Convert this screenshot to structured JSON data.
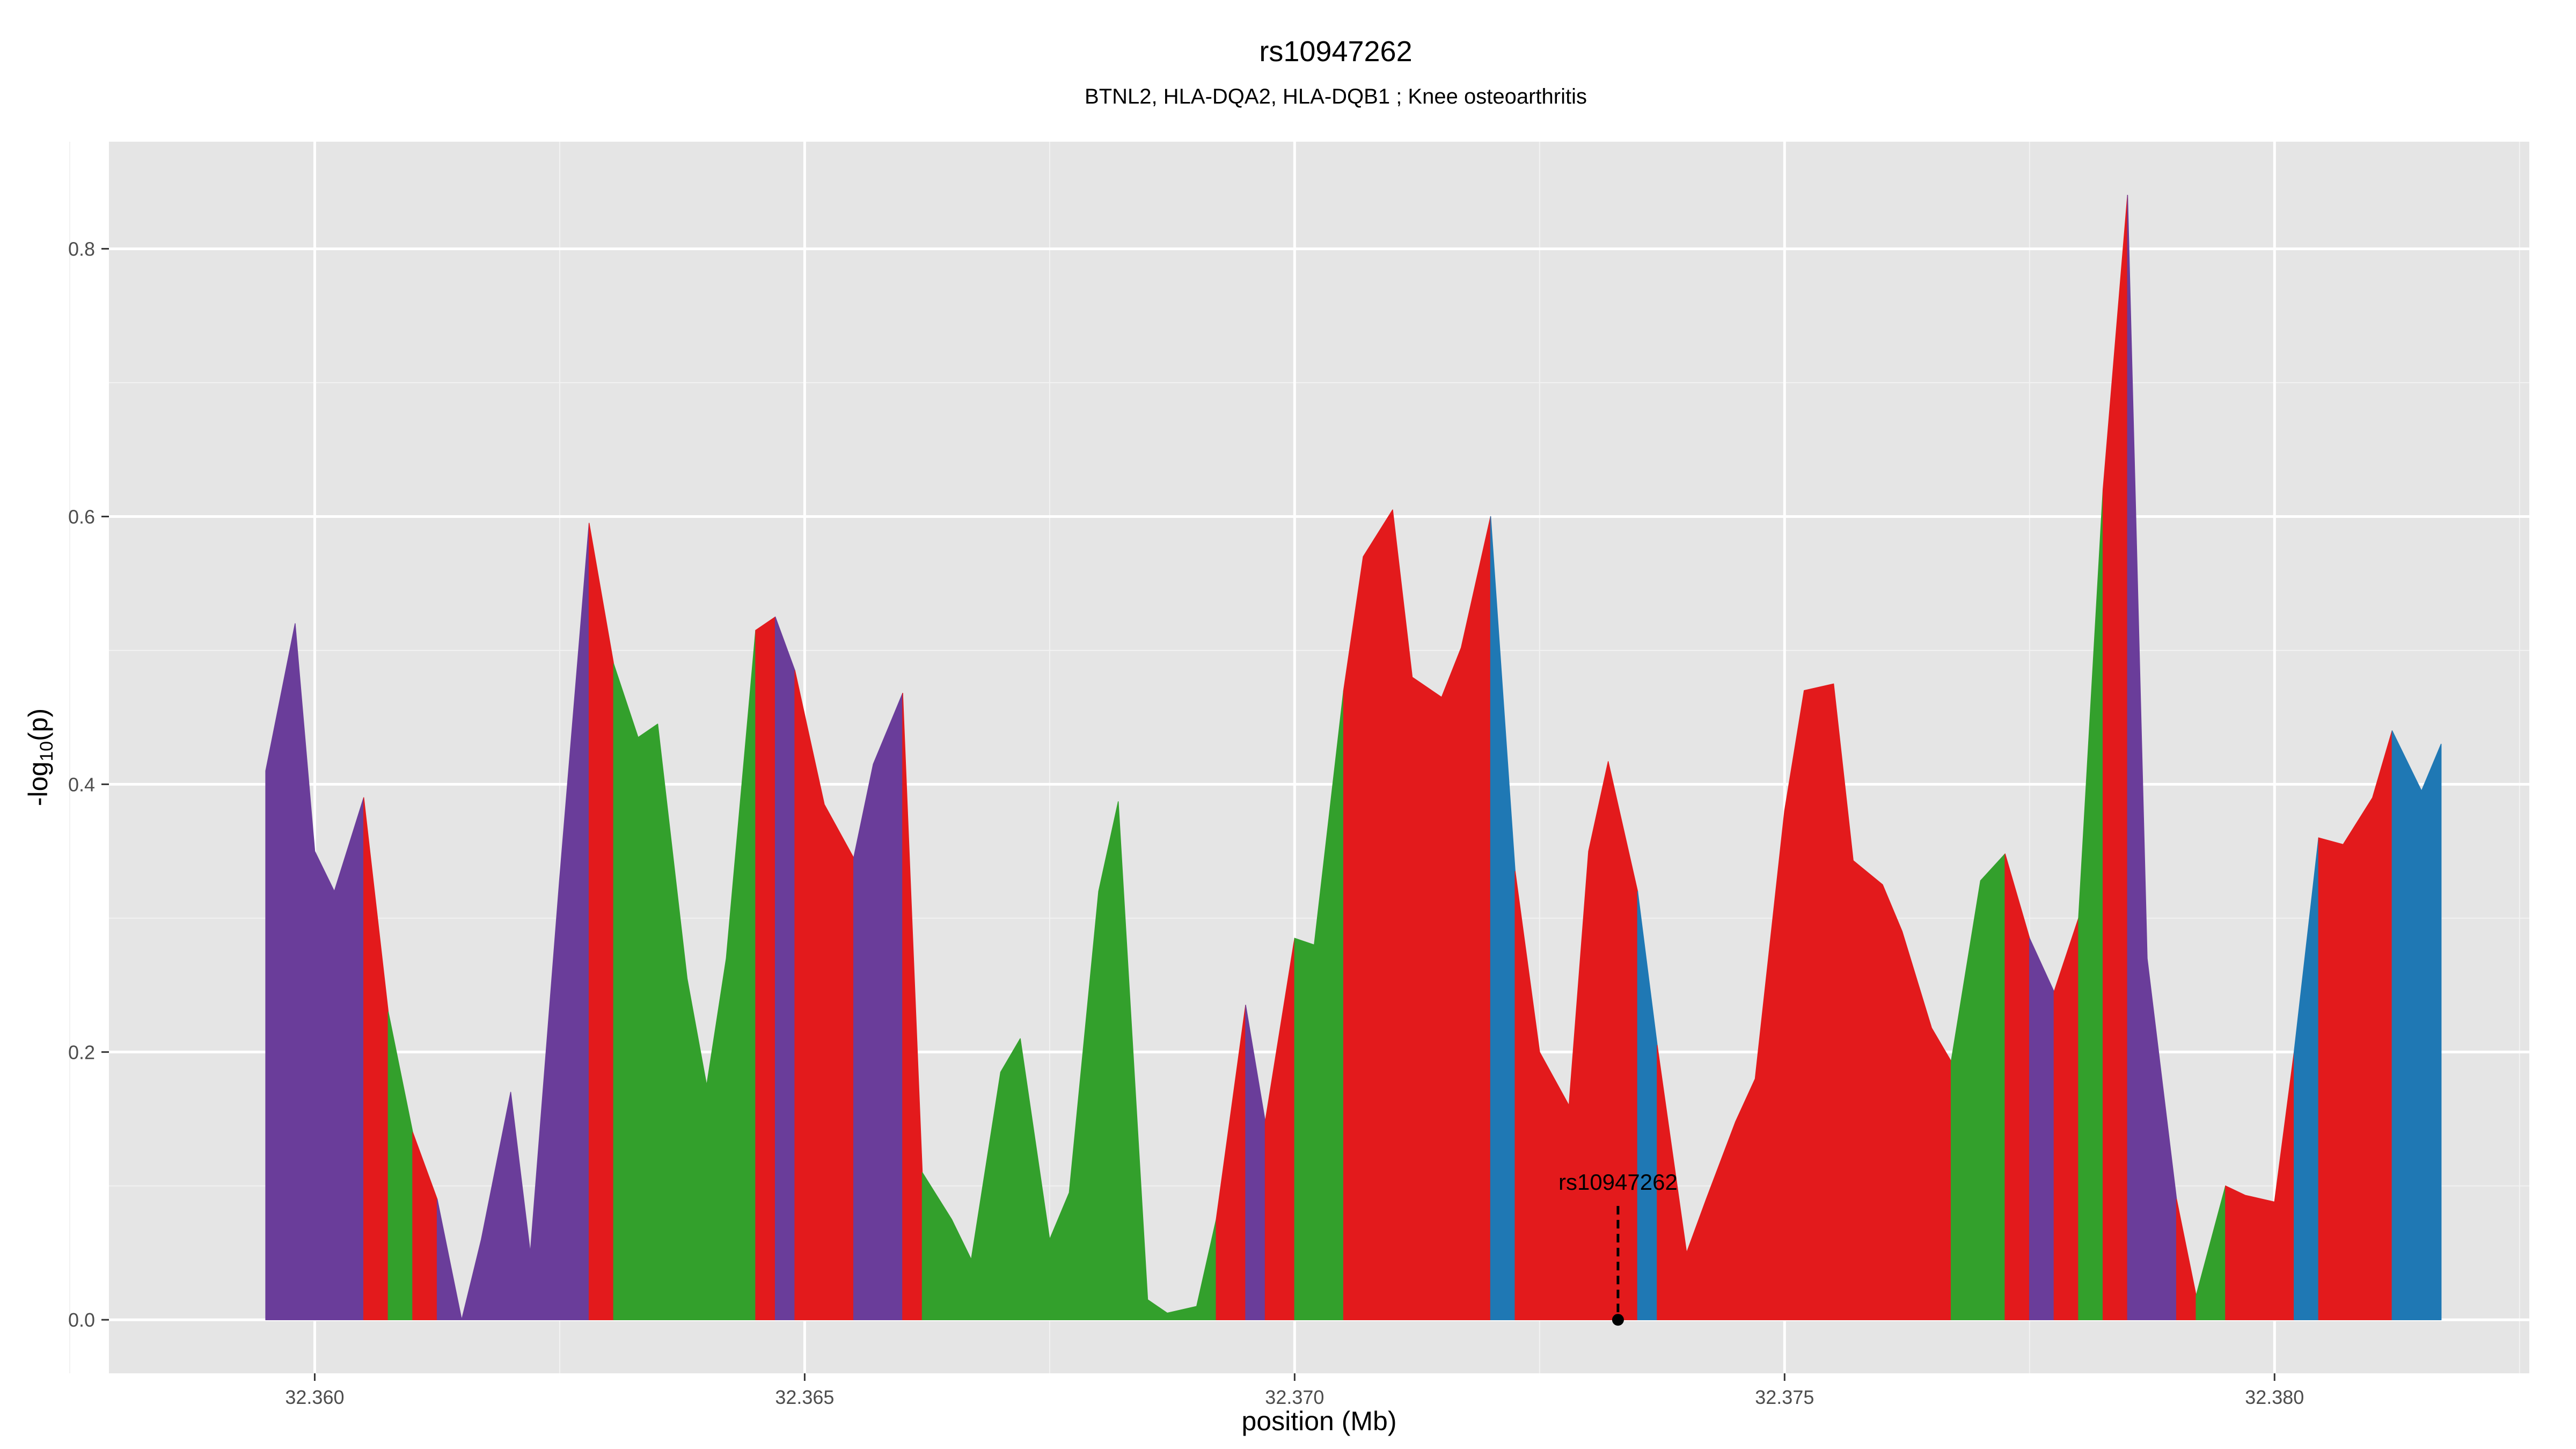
{
  "chart_data": {
    "type": "area",
    "title": "rs10947262",
    "subtitle": "BTNL2, HLA-DQA2, HLA-DQB1 ; Knee osteoarthritis",
    "xlabel": "position (Mb)",
    "ylabel_main": "-log",
    "ylabel_sub": "10",
    "ylabel_tail": "(p)",
    "xlim": [
      32.3579,
      32.3826
    ],
    "ylim": [
      -0.04,
      0.88
    ],
    "x_ticks": [
      32.36,
      32.365,
      32.37,
      32.375,
      32.38
    ],
    "x_tick_labels": [
      "32.360",
      "32.365",
      "32.370",
      "32.375",
      "32.380"
    ],
    "x_minor_ticks": [
      32.3575,
      32.3625,
      32.3675,
      32.3725,
      32.3775,
      32.3825
    ],
    "y_ticks": [
      0.0,
      0.2,
      0.4,
      0.6,
      0.8
    ],
    "y_tick_labels": [
      "0.0",
      "0.2",
      "0.4",
      "0.6",
      "0.8"
    ],
    "y_minor_ticks": [
      0.1,
      0.3,
      0.5,
      0.7
    ],
    "grid": true,
    "colors": {
      "purple": "#6a3d9a",
      "red": "#e31a1c",
      "green": "#33a02c",
      "blue": "#1f78b4",
      "panel": "#e5e5e5",
      "grid_major": "#ffffff",
      "grid_minor": "#f2f2f2"
    },
    "segments": [
      {
        "color": "purple",
        "x": [
          32.3595,
          32.3598,
          32.36,
          32.3602,
          32.3605
        ],
        "y": [
          0.41,
          0.52,
          0.35,
          0.32,
          0.39
        ]
      },
      {
        "color": "red",
        "x": [
          32.3605,
          32.36075
        ],
        "y": [
          0.39,
          0.23
        ]
      },
      {
        "color": "green",
        "x": [
          32.36075,
          32.361
        ],
        "y": [
          0.23,
          0.14
        ]
      },
      {
        "color": "red",
        "x": [
          32.361,
          32.36125
        ],
        "y": [
          0.14,
          0.09
        ]
      },
      {
        "color": "purple",
        "x": [
          32.36125,
          32.3615,
          32.3617,
          32.362,
          32.3622,
          32.3625,
          32.3628
        ],
        "y": [
          0.09,
          0.0,
          0.06,
          0.17,
          0.05,
          0.33,
          0.595
        ]
      },
      {
        "color": "red",
        "x": [
          32.3628,
          32.36305
        ],
        "y": [
          0.595,
          0.49
        ]
      },
      {
        "color": "green",
        "x": [
          32.36305,
          32.3633,
          32.3635,
          32.3638,
          32.364,
          32.3642,
          32.3645
        ],
        "y": [
          0.49,
          0.435,
          0.445,
          0.255,
          0.175,
          0.27,
          0.515
        ]
      },
      {
        "color": "red",
        "x": [
          32.3645,
          32.3647
        ],
        "y": [
          0.515,
          0.525
        ]
      },
      {
        "color": "purple",
        "x": [
          32.3647,
          32.3649
        ],
        "y": [
          0.525,
          0.485
        ]
      },
      {
        "color": "red",
        "x": [
          32.3649,
          32.3652,
          32.3655
        ],
        "y": [
          0.485,
          0.385,
          0.345
        ]
      },
      {
        "color": "purple",
        "x": [
          32.3655,
          32.3657,
          32.366
        ],
        "y": [
          0.345,
          0.415,
          0.468
        ]
      },
      {
        "color": "red",
        "x": [
          32.366,
          32.3662
        ],
        "y": [
          0.468,
          0.11
        ]
      },
      {
        "color": "green",
        "x": [
          32.3662,
          32.3665,
          32.3667,
          32.367,
          32.3672,
          32.3675,
          32.3677,
          32.368,
          32.3682,
          32.3685,
          32.3687,
          32.369,
          32.3692
        ],
        "y": [
          0.11,
          0.075,
          0.045,
          0.185,
          0.21,
          0.06,
          0.095,
          0.32,
          0.387,
          0.015,
          0.005,
          0.01,
          0.075
        ]
      },
      {
        "color": "red",
        "x": [
          32.3692,
          32.3695
        ],
        "y": [
          0.075,
          0.235
        ]
      },
      {
        "color": "purple",
        "x": [
          32.3695,
          32.3697
        ],
        "y": [
          0.235,
          0.148
        ]
      },
      {
        "color": "red",
        "x": [
          32.3697,
          32.37
        ],
        "y": [
          0.148,
          0.285
        ]
      },
      {
        "color": "green",
        "x": [
          32.37,
          32.3702,
          32.3705
        ],
        "y": [
          0.285,
          0.28,
          0.47
        ]
      },
      {
        "color": "red",
        "x": [
          32.3705,
          32.3707,
          32.371,
          32.3712,
          32.3715,
          32.3717,
          32.372
        ],
        "y": [
          0.47,
          0.57,
          0.605,
          0.48,
          0.465,
          0.502,
          0.6
        ]
      },
      {
        "color": "blue",
        "x": [
          32.372,
          32.37225
        ],
        "y": [
          0.6,
          0.335
        ]
      },
      {
        "color": "red",
        "x": [
          32.37225,
          32.3725,
          32.3728,
          32.373,
          32.3732,
          32.3735
        ],
        "y": [
          0.335,
          0.2,
          0.16,
          0.35,
          0.417,
          0.32
        ]
      },
      {
        "color": "blue",
        "x": [
          32.3735,
          32.3737
        ],
        "y": [
          0.32,
          0.205
        ]
      },
      {
        "color": "red",
        "x": [
          32.3737,
          32.374,
          32.3742,
          32.3745,
          32.3747,
          32.375,
          32.3752,
          32.3755,
          32.3757,
          32.376,
          32.3762,
          32.3765,
          32.3767
        ],
        "y": [
          0.205,
          0.05,
          0.09,
          0.148,
          0.18,
          0.38,
          0.47,
          0.475,
          0.343,
          0.325,
          0.29,
          0.218,
          0.193
        ]
      },
      {
        "color": "green",
        "x": [
          32.3767,
          32.377,
          32.37725
        ],
        "y": [
          0.193,
          0.328,
          0.348
        ]
      },
      {
        "color": "red",
        "x": [
          32.37725,
          32.3775
        ],
        "y": [
          0.348,
          0.285
        ]
      },
      {
        "color": "purple",
        "x": [
          32.3775,
          32.37775
        ],
        "y": [
          0.285,
          0.245
        ]
      },
      {
        "color": "red",
        "x": [
          32.37775,
          32.378
        ],
        "y": [
          0.245,
          0.3
        ]
      },
      {
        "color": "green",
        "x": [
          32.378,
          32.37825
        ],
        "y": [
          0.3,
          0.62
        ]
      },
      {
        "color": "red",
        "x": [
          32.37825,
          32.3785
        ],
        "y": [
          0.62,
          0.84
        ]
      },
      {
        "color": "purple",
        "x": [
          32.3785,
          32.3787,
          32.379
        ],
        "y": [
          0.84,
          0.27,
          0.09
        ]
      },
      {
        "color": "red",
        "x": [
          32.379,
          32.3792
        ],
        "y": [
          0.09,
          0.018
        ]
      },
      {
        "color": "green",
        "x": [
          32.3792,
          32.3795
        ],
        "y": [
          0.018,
          0.1
        ]
      },
      {
        "color": "red",
        "x": [
          32.3795,
          32.3797,
          32.38,
          32.3802
        ],
        "y": [
          0.1,
          0.093,
          0.088,
          0.2
        ]
      },
      {
        "color": "blue",
        "x": [
          32.3802,
          32.38045
        ],
        "y": [
          0.2,
          0.36
        ]
      },
      {
        "color": "red",
        "x": [
          32.38045,
          32.3807,
          32.381,
          32.3812
        ],
        "y": [
          0.36,
          0.355,
          0.39,
          0.44
        ]
      },
      {
        "color": "blue",
        "x": [
          32.3812,
          32.3815,
          32.3817
        ],
        "y": [
          0.44,
          0.395,
          0.43
        ]
      }
    ],
    "annotation": {
      "label": "rs10947262",
      "x": 32.3733,
      "y": 0.0,
      "line_top": 0.085
    }
  }
}
